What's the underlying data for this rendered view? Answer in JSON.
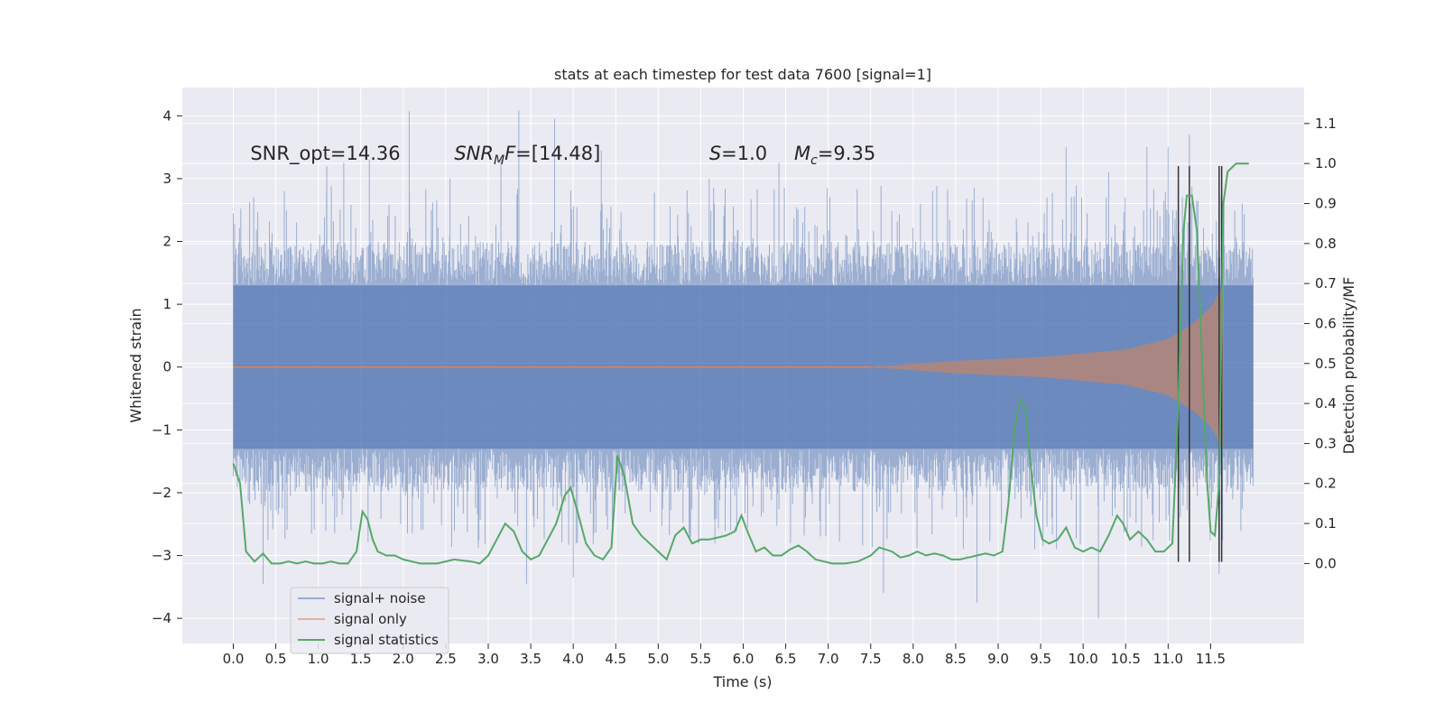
{
  "chart_data": {
    "type": "line",
    "title": "stats at each timestep for test data 7600 [signal=1]",
    "xlabel": "Time (s)",
    "ylabel": "Whitened strain",
    "y2label": "Detection probability/MF",
    "xlim": [
      -0.6,
      12.6
    ],
    "ylim": [
      -4.4,
      4.45
    ],
    "y2lim": [
      -0.2,
      1.19
    ],
    "xticks": [
      0.0,
      0.5,
      1.0,
      1.5,
      2.0,
      2.5,
      3.0,
      3.5,
      4.0,
      4.5,
      5.0,
      5.5,
      6.0,
      6.5,
      7.0,
      7.5,
      8.0,
      8.5,
      9.0,
      9.5,
      10.0,
      10.5,
      11.0,
      11.5
    ],
    "xtick_labels": [
      "0.0",
      "0.5",
      "1.0",
      "1.5",
      "2.0",
      "2.5",
      "3.0",
      "3.5",
      "4.0",
      "4.5",
      "5.0",
      "5.5",
      "6.0",
      "6.5",
      "7.0",
      "7.5",
      "8.0",
      "8.5",
      "9.0",
      "9.5",
      "10.0",
      "10.5",
      "11.0",
      "11.5"
    ],
    "yticks": [
      -4,
      -3,
      -2,
      -1,
      0,
      1,
      2,
      3,
      4
    ],
    "ytick_labels": [
      "−4",
      "−3",
      "−2",
      "−1",
      "0",
      "1",
      "2",
      "3",
      "4"
    ],
    "y2ticks": [
      0.0,
      0.1,
      0.2,
      0.3,
      0.4,
      0.5,
      0.6,
      0.7,
      0.8,
      0.9,
      1.0,
      1.1
    ],
    "y2tick_labels": [
      "0.0",
      "0.1",
      "0.2",
      "0.3",
      "0.4",
      "0.5",
      "0.6",
      "0.7",
      "0.8",
      "0.9",
      "1.0",
      "1.1"
    ],
    "grid": true,
    "legend_position": "lower-left",
    "annotations": [
      {
        "x": 0.2,
        "y": 3.3,
        "text": "SNR_opt=14.36"
      },
      {
        "x": 2.6,
        "y": 3.3,
        "text": "SNR_MF=[14.48]",
        "display_prefix": "SNR",
        "display_sub": "M",
        "display_suffix": "F=[14.48]"
      },
      {
        "x": 5.6,
        "y": 3.3,
        "text": "S=1.0",
        "display_italic": "S",
        "display_suffix": "=1.0"
      },
      {
        "x": 6.6,
        "y": 3.3,
        "text": "M_c=9.35",
        "display_italic": "M",
        "display_sub": "c",
        "display_suffix": "=9.35"
      }
    ],
    "series": [
      {
        "name": "signal+ noise",
        "color": "#4c72b0",
        "alpha": 0.5,
        "kind": "noise_band",
        "x_range": [
          0.0,
          12.0
        ],
        "typical_max": 2.0,
        "typical_min": -2.0,
        "dense_band": [
          -1.3,
          1.3
        ],
        "noted_extremes": [
          {
            "x": 0.0,
            "y": 2.45
          },
          {
            "x": 0.6,
            "y": 2.8
          },
          {
            "x": 1.1,
            "y": 3.2
          },
          {
            "x": 1.3,
            "y": 3.25
          },
          {
            "x": 1.6,
            "y": 3.3
          },
          {
            "x": 2.07,
            "y": 4.07
          },
          {
            "x": 2.55,
            "y": 3.0
          },
          {
            "x": 3.15,
            "y": 3.35
          },
          {
            "x": 3.36,
            "y": 4.08
          },
          {
            "x": 3.78,
            "y": 3.95
          },
          {
            "x": 4.33,
            "y": 3.45
          },
          {
            "x": 5.6,
            "y": 3.0
          },
          {
            "x": 6.42,
            "y": 3.25
          },
          {
            "x": 9.8,
            "y": 3.5
          },
          {
            "x": 10.3,
            "y": 3.1
          },
          {
            "x": 10.75,
            "y": 3.5
          },
          {
            "x": 11.0,
            "y": 3.5
          },
          {
            "x": 11.25,
            "y": 3.7
          },
          {
            "x": 0.35,
            "y": -3.45
          },
          {
            "x": 3.45,
            "y": -3.45
          },
          {
            "x": 4.0,
            "y": -3.35
          },
          {
            "x": 7.65,
            "y": -3.6
          },
          {
            "x": 8.75,
            "y": -3.75
          },
          {
            "x": 10.18,
            "y": -4.0
          },
          {
            "x": 11.6,
            "y": -3.3
          }
        ]
      },
      {
        "name": "signal only",
        "color": "#dd8452",
        "alpha": 0.55,
        "kind": "chirp",
        "t_start": 7.5,
        "t_end": 11.65,
        "amplitude_points": [
          [
            7.5,
            0.0
          ],
          [
            8.5,
            0.1
          ],
          [
            9.5,
            0.16
          ],
          [
            10.5,
            0.28
          ],
          [
            11.0,
            0.45
          ],
          [
            11.3,
            0.7
          ],
          [
            11.5,
            0.95
          ],
          [
            11.65,
            1.3
          ]
        ]
      },
      {
        "name": "signal statistics",
        "color": "#55a868",
        "kind": "line",
        "axis": "right",
        "x": [
          0.0,
          0.08,
          0.15,
          0.25,
          0.35,
          0.45,
          0.55,
          0.65,
          0.75,
          0.85,
          0.95,
          1.05,
          1.15,
          1.25,
          1.35,
          1.45,
          1.52,
          1.58,
          1.64,
          1.7,
          1.8,
          1.9,
          2.0,
          2.1,
          2.2,
          2.4,
          2.6,
          2.8,
          2.9,
          3.0,
          3.1,
          3.2,
          3.3,
          3.4,
          3.5,
          3.6,
          3.7,
          3.8,
          3.9,
          3.97,
          4.05,
          4.15,
          4.25,
          4.35,
          4.45,
          4.52,
          4.6,
          4.7,
          4.8,
          4.9,
          5.0,
          5.1,
          5.2,
          5.3,
          5.4,
          5.5,
          5.6,
          5.7,
          5.8,
          5.9,
          5.98,
          6.05,
          6.15,
          6.25,
          6.35,
          6.45,
          6.55,
          6.65,
          6.75,
          6.85,
          6.95,
          7.05,
          7.2,
          7.35,
          7.5,
          7.6,
          7.75,
          7.85,
          7.95,
          8.05,
          8.15,
          8.25,
          8.35,
          8.45,
          8.55,
          8.65,
          8.75,
          8.85,
          8.95,
          9.05,
          9.12,
          9.2,
          9.26,
          9.32,
          9.38,
          9.45,
          9.52,
          9.6,
          9.7,
          9.8,
          9.9,
          10.0,
          10.1,
          10.2,
          10.3,
          10.4,
          10.47,
          10.55,
          10.65,
          10.75,
          10.85,
          10.95,
          11.05,
          11.12,
          11.18,
          11.22,
          11.28,
          11.34,
          11.4,
          11.46,
          11.5,
          11.55,
          11.6,
          11.65,
          11.7,
          11.75,
          11.8,
          11.9,
          11.95
        ],
        "values": [
          0.25,
          0.2,
          0.03,
          0.005,
          0.025,
          0.0,
          0.0,
          0.005,
          0.0,
          0.005,
          0.0,
          0.0,
          0.005,
          0.0,
          0.0,
          0.03,
          0.13,
          0.11,
          0.06,
          0.03,
          0.02,
          0.02,
          0.01,
          0.005,
          0.0,
          0.0,
          0.01,
          0.005,
          0.0,
          0.02,
          0.06,
          0.1,
          0.08,
          0.03,
          0.01,
          0.02,
          0.06,
          0.1,
          0.17,
          0.19,
          0.13,
          0.05,
          0.02,
          0.01,
          0.04,
          0.27,
          0.22,
          0.1,
          0.07,
          0.05,
          0.03,
          0.01,
          0.07,
          0.09,
          0.05,
          0.06,
          0.06,
          0.065,
          0.07,
          0.08,
          0.12,
          0.08,
          0.03,
          0.04,
          0.02,
          0.02,
          0.035,
          0.045,
          0.03,
          0.01,
          0.005,
          0.0,
          0.0,
          0.005,
          0.02,
          0.04,
          0.03,
          0.015,
          0.02,
          0.03,
          0.02,
          0.025,
          0.02,
          0.01,
          0.01,
          0.015,
          0.02,
          0.025,
          0.02,
          0.03,
          0.15,
          0.35,
          0.41,
          0.39,
          0.25,
          0.12,
          0.06,
          0.05,
          0.06,
          0.09,
          0.04,
          0.03,
          0.04,
          0.03,
          0.07,
          0.12,
          0.1,
          0.06,
          0.08,
          0.06,
          0.03,
          0.03,
          0.05,
          0.4,
          0.83,
          0.92,
          0.92,
          0.83,
          0.5,
          0.2,
          0.08,
          0.07,
          0.2,
          0.9,
          0.98,
          0.99,
          1.0,
          1.0,
          1.0
        ]
      }
    ],
    "vertical_markers": {
      "color": "#333333",
      "x": [
        11.12,
        11.25,
        11.6,
        11.63
      ],
      "y_from": -3.1,
      "y_to": 3.2
    }
  }
}
